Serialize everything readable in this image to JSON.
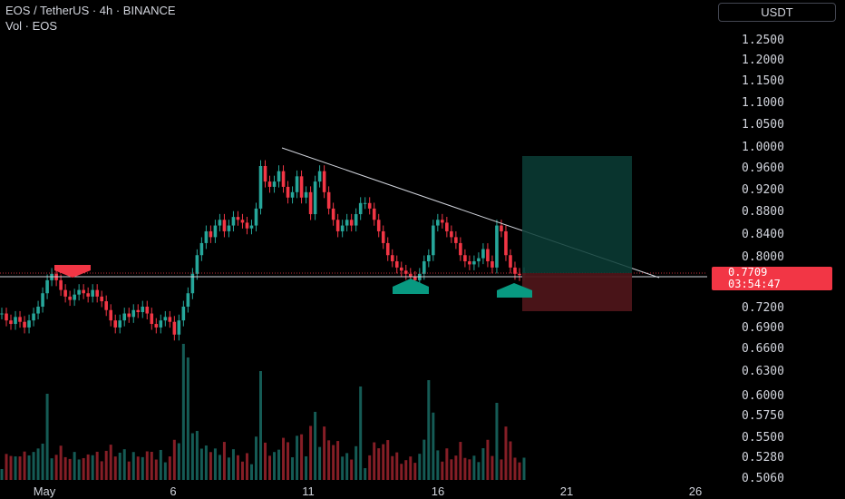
{
  "header": {
    "symbol_line": "EOS / TetherUS · 4h · BINANCE",
    "volume_line": "Vol · EOS"
  },
  "currency_button": "USDT",
  "current_price": {
    "value": "0.7709",
    "countdown": "03:54:47"
  },
  "colors": {
    "up": "#26a69a",
    "down": "#f23645",
    "background": "#000000",
    "text": "#d1d4dc",
    "arrow_down": "#f23645",
    "arrow_up": "#089981"
  },
  "chart_data": {
    "type": "candlestick",
    "price_axis_labels": [
      "1.2500",
      "1.2000",
      "1.1500",
      "1.1000",
      "1.0500",
      "1.0000",
      "0.9600",
      "0.9200",
      "0.8800",
      "0.8400",
      "0.8000",
      "0.7200",
      "0.6900",
      "0.6600",
      "0.6300",
      "0.6000",
      "0.5750",
      "0.5500",
      "0.5280",
      "0.5060"
    ],
    "time_axis_labels": [
      "May",
      "6",
      "11",
      "16",
      "21",
      "26"
    ],
    "scale": "log",
    "support_level": 0.766,
    "trendline": {
      "from": {
        "date": "May 10",
        "price": 0.995
      },
      "to": {
        "date": "May 24",
        "price": 0.766
      }
    },
    "position_box": {
      "entry": 0.77,
      "target": 0.985,
      "stop": 0.713
    },
    "markers": [
      {
        "type": "down-arrow",
        "date": "May 3",
        "price": 0.78
      },
      {
        "type": "up-arrow",
        "date": "May 15",
        "price": 0.752
      },
      {
        "type": "up-arrow",
        "date": "May 19",
        "price": 0.747
      }
    ],
    "series": [
      {
        "values": [
          0.71,
          0.7,
          0.695,
          0.705,
          0.698,
          0.69,
          0.7,
          0.71,
          0.72,
          0.74,
          0.76,
          0.77,
          0.76,
          0.745,
          0.735,
          0.73,
          0.738,
          0.745,
          0.74,
          0.735,
          0.745,
          0.735,
          0.728,
          0.715,
          0.7,
          0.69,
          0.7,
          0.71,
          0.705,
          0.715,
          0.712,
          0.72,
          0.71,
          0.695,
          0.69,
          0.7,
          0.705,
          0.698,
          0.68,
          0.7,
          0.72,
          0.74,
          0.77,
          0.8,
          0.82,
          0.84,
          0.83,
          0.85,
          0.86,
          0.84,
          0.85,
          0.865,
          0.86,
          0.855,
          0.845,
          0.85,
          0.88,
          0.96,
          0.93,
          0.92,
          0.93,
          0.95,
          0.92,
          0.9,
          0.91,
          0.94,
          0.9,
          0.91,
          0.87,
          0.93,
          0.95,
          0.91,
          0.88,
          0.86,
          0.84,
          0.85,
          0.86,
          0.85,
          0.87,
          0.89,
          0.89,
          0.88,
          0.86,
          0.84,
          0.82,
          0.8,
          0.79,
          0.78,
          0.775,
          0.77,
          0.765,
          0.76,
          0.77,
          0.79,
          0.8,
          0.85,
          0.86,
          0.855,
          0.84,
          0.83,
          0.82,
          0.8,
          0.79,
          0.785,
          0.79,
          0.795,
          0.81,
          0.79,
          0.78,
          0.85,
          0.84,
          0.8,
          0.78,
          0.77,
          0.768,
          0.771
        ]
      }
    ]
  }
}
